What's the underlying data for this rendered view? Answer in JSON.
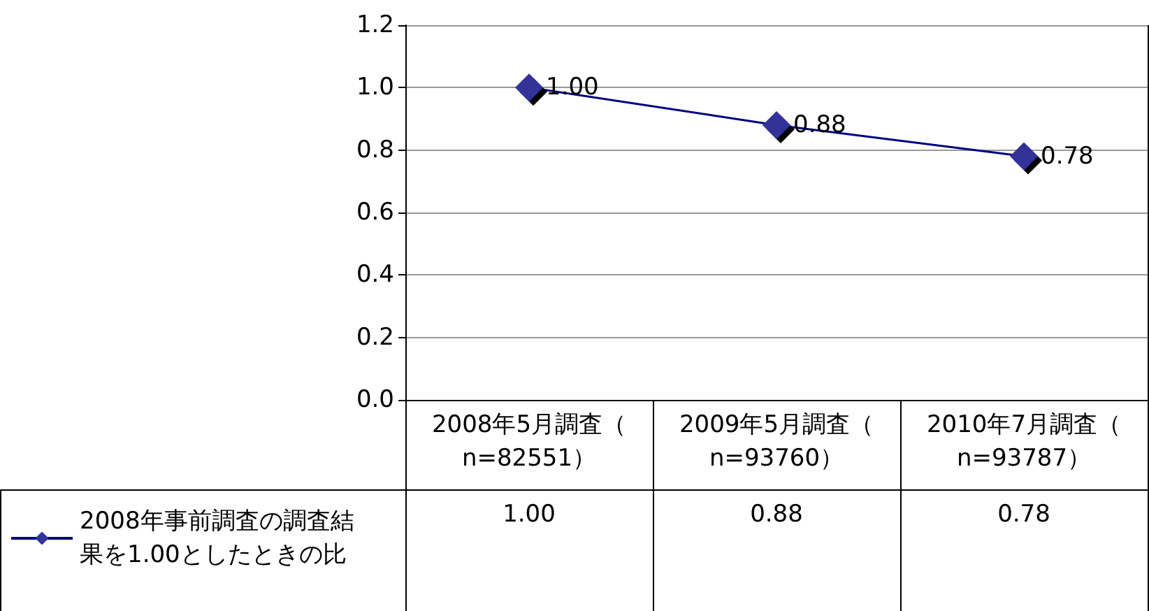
{
  "chart_data": {
    "type": "line",
    "categories": [
      "2008年5月調査（n=82551）",
      "2009年5月調査（n=93760）",
      "2010年7月調査（n=93787）"
    ],
    "series": [
      {
        "name": "2008年事前調査の調査結果を1.00としたときの比",
        "color": "#333399",
        "values": [
          1.0,
          0.88,
          0.78
        ],
        "value_labels": [
          "1.00",
          "0.88",
          "0.78"
        ]
      }
    ],
    "ylim": [
      0,
      1.2
    ],
    "yticks": [
      {
        "value": 0,
        "label": "0.0"
      },
      {
        "value": 0.2,
        "label": "0.2"
      },
      {
        "value": 0.4,
        "label": "0.4"
      },
      {
        "value": 0.6,
        "label": "0.6"
      },
      {
        "value": 0.8,
        "label": "0.8"
      },
      {
        "value": 1,
        "label": "1.0"
      },
      {
        "value": 1.2,
        "label": "1.2"
      }
    ],
    "grid": "y",
    "legend": "bottom",
    "marker": "diamond",
    "line_style": "solid"
  }
}
